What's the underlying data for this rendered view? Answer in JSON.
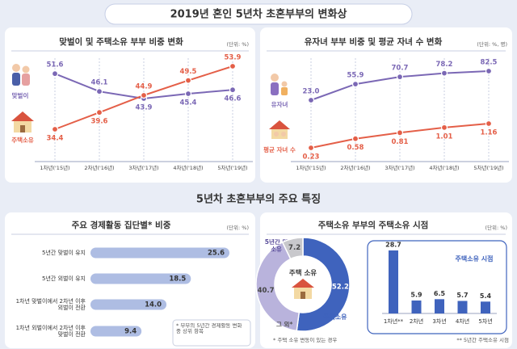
{
  "title": "2019년 혼인 5년차 초혼부부의 변화상",
  "section_title": "5년차 초혼부부의 주요 특징",
  "chart_data": [
    {
      "type": "line",
      "title": "맞벌이 및 주택소유 부부 비중 변화",
      "unit": "(단위: %)",
      "categories": [
        "1차년('15년)",
        "2차년('16년)",
        "3차년('17년)",
        "4차년('18년)",
        "5차년('19년)"
      ],
      "series": [
        {
          "name": "맞벌이",
          "color": "#7b68b5",
          "values": [
            51.6,
            46.1,
            43.9,
            45.4,
            46.6
          ]
        },
        {
          "name": "주택소유",
          "color": "#e45f48",
          "values": [
            34.4,
            39.6,
            44.9,
            49.5,
            53.9
          ]
        }
      ]
    },
    {
      "type": "line",
      "title": "유자녀 부부 비중 및 평균 자녀 수 변화",
      "unit": "(단위: %, 명)",
      "categories": [
        "1차년('15년)",
        "2차년('16년)",
        "3차년('17년)",
        "4차년('18년)",
        "5차년('19년)"
      ],
      "series": [
        {
          "name": "유자녀",
          "color": "#7b68b5",
          "values": [
            23.0,
            55.9,
            70.7,
            78.2,
            82.5
          ],
          "value_labels": [
            "23.0",
            "55.9",
            "70.7",
            "78.2",
            "82.5"
          ]
        },
        {
          "name": "평균 자녀 수",
          "color": "#e45f48",
          "axis": "y2",
          "values": [
            0.23,
            0.58,
            0.81,
            1.01,
            1.16
          ]
        }
      ]
    },
    {
      "type": "bar",
      "orientation": "horizontal",
      "title": "주요 경제활동 집단별* 비중",
      "unit": "(단위: %)",
      "categories": [
        "5년간 맞벌이 유지",
        "5년간 외벌이 유지",
        "1차년 맞벌이에서 2차년 이후 외벌이 전환",
        "1차년 외벌이에서 2차년 이후 맞벌이 전환"
      ],
      "values": [
        25.6,
        18.5,
        14.0,
        9.4
      ],
      "value_labels": [
        "25.6",
        "18.5",
        "14.0",
        "9.4"
      ],
      "color": "#aebde3",
      "note": "* 부부의 5년간 경제활동 변화 중 상위 항목"
    },
    {
      "type": "pie",
      "donut": true,
      "title": "주택소유 부부의 주택소유 시점",
      "unit": "(단위: %)",
      "center_label": "주택 소유",
      "categories": [
        "주택소유",
        "5년간 미소유",
        "그 외*"
      ],
      "values": [
        52.2,
        40.7,
        7.2
      ],
      "colors": [
        "#3f63bd",
        "#b9b3dc",
        "#c8c8cc"
      ],
      "note": "* 주택 소유 변동이 있는 경우"
    },
    {
      "type": "bar",
      "title": "주택소유 시점",
      "categories": [
        "1차년**",
        "2차년",
        "3차년",
        "4차년",
        "5차년"
      ],
      "values": [
        28.7,
        5.9,
        6.5,
        5.7,
        5.4
      ],
      "color": "#3f63bd",
      "note": "** 5년간 주택소유 시점"
    }
  ]
}
